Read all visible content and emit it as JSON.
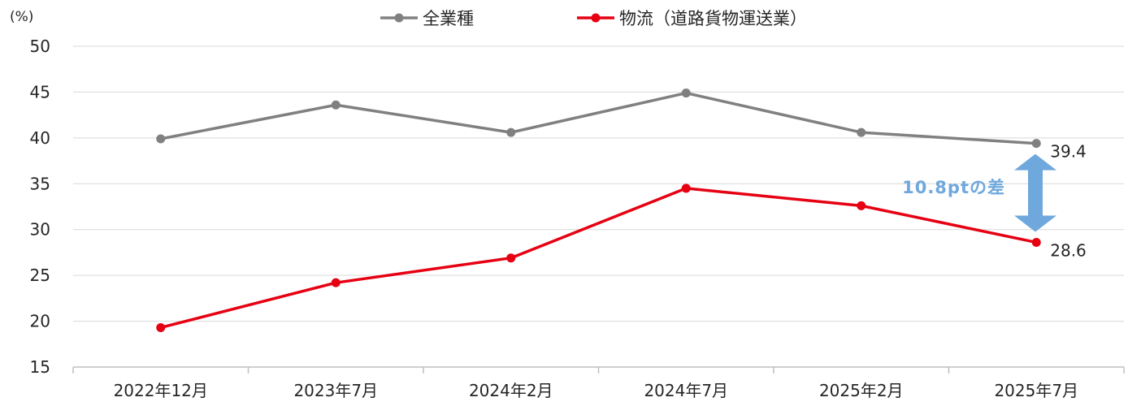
{
  "chart_data": {
    "type": "line",
    "unit_label": "(%)",
    "categories": [
      "2022年12月",
      "2023年7月",
      "2024年2月",
      "2024年7月",
      "2025年2月",
      "2025年7月"
    ],
    "ylim": [
      15,
      50
    ],
    "yticks": [
      15,
      20,
      25,
      30,
      35,
      40,
      45,
      50
    ],
    "grid": true,
    "legend_position": "top",
    "series": [
      {
        "name": "全業種",
        "color": "#808080",
        "values": [
          39.9,
          43.6,
          40.6,
          44.9,
          40.6,
          39.4
        ]
      },
      {
        "name": "物流（道路貨物運送業）",
        "color": "#E60012",
        "values": [
          19.3,
          24.2,
          26.9,
          34.5,
          32.6,
          28.6
        ]
      }
    ],
    "data_labels": [
      {
        "series": 0,
        "index": 5,
        "text": "39.4"
      },
      {
        "series": 1,
        "index": 5,
        "text": "28.6"
      }
    ],
    "annotation": {
      "text": "10.8ptの差",
      "arrow_color": "#6FA8DC"
    }
  }
}
